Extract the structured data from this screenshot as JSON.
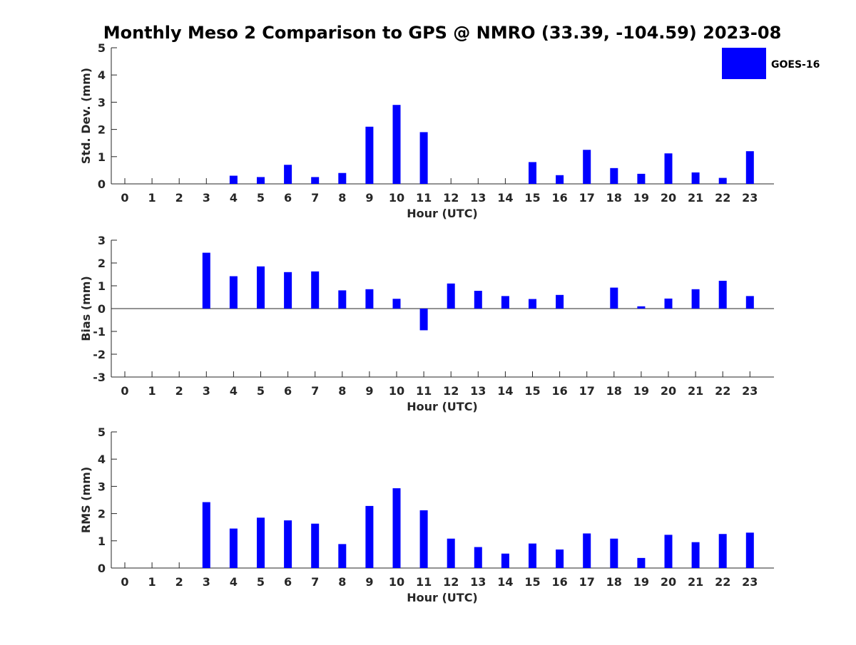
{
  "title": "Monthly Meso 2 Comparison to GPS @ NMRO (33.39, -104.59) 2023-08",
  "legend": {
    "label": "GOES-16",
    "placement": "top-right"
  },
  "colors": {
    "bar": "#0000ff",
    "axis": "#262626"
  },
  "chart_data": [
    {
      "type": "bar",
      "name": "std-dev",
      "xlabel": "Hour (UTC)",
      "ylabel": "Std. Dev. (mm)",
      "ylim": [
        0,
        5
      ],
      "yticks": [
        "0",
        "1",
        "2",
        "3",
        "4",
        "5"
      ],
      "ytick_values": [
        0,
        1,
        2,
        3,
        4,
        5
      ],
      "categories": [
        "0",
        "1",
        "2",
        "3",
        "4",
        "5",
        "6",
        "7",
        "8",
        "9",
        "10",
        "11",
        "12",
        "13",
        "14",
        "15",
        "16",
        "17",
        "18",
        "19",
        "20",
        "21",
        "22",
        "23"
      ],
      "series": [
        {
          "name": "GOES-16",
          "values": [
            null,
            null,
            null,
            null,
            0.3,
            0.25,
            0.7,
            0.25,
            0.4,
            2.1,
            2.9,
            1.9,
            null,
            null,
            null,
            0.8,
            0.32,
            1.25,
            0.58,
            0.37,
            1.12,
            0.42,
            0.22,
            1.2
          ]
        }
      ]
    },
    {
      "type": "bar",
      "name": "bias",
      "xlabel": "Hour (UTC)",
      "ylabel": "Bias (mm)",
      "ylim": [
        -3,
        3
      ],
      "yticks": [
        "-3",
        "-2",
        "-1",
        "0",
        "1",
        "2",
        "3"
      ],
      "ytick_values": [
        -3,
        -2,
        -1,
        0,
        1,
        2,
        3
      ],
      "zero_line": true,
      "categories": [
        "0",
        "1",
        "2",
        "3",
        "4",
        "5",
        "6",
        "7",
        "8",
        "9",
        "10",
        "11",
        "12",
        "13",
        "14",
        "15",
        "16",
        "17",
        "18",
        "19",
        "20",
        "21",
        "22",
        "23"
      ],
      "series": [
        {
          "name": "GOES-16",
          "values": [
            null,
            null,
            null,
            2.45,
            1.42,
            1.85,
            1.6,
            1.63,
            0.8,
            0.85,
            0.43,
            -0.95,
            1.1,
            0.78,
            0.55,
            0.42,
            0.6,
            0.0,
            0.92,
            0.1,
            0.44,
            0.85,
            1.22,
            0.55
          ]
        }
      ]
    },
    {
      "type": "bar",
      "name": "rms",
      "xlabel": "Hour (UTC)",
      "ylabel": "RMS (mm)",
      "ylim": [
        0,
        5
      ],
      "yticks": [
        "0",
        "1",
        "2",
        "3",
        "4",
        "5"
      ],
      "ytick_values": [
        0,
        1,
        2,
        3,
        4,
        5
      ],
      "categories": [
        "0",
        "1",
        "2",
        "3",
        "4",
        "5",
        "6",
        "7",
        "8",
        "9",
        "10",
        "11",
        "12",
        "13",
        "14",
        "15",
        "16",
        "17",
        "18",
        "19",
        "20",
        "21",
        "22",
        "23"
      ],
      "series": [
        {
          "name": "GOES-16",
          "values": [
            null,
            null,
            null,
            2.42,
            1.45,
            1.85,
            1.75,
            1.63,
            0.88,
            2.28,
            2.93,
            2.12,
            1.08,
            0.77,
            0.53,
            0.9,
            0.68,
            1.27,
            1.08,
            0.37,
            1.22,
            0.95,
            1.25,
            1.3
          ]
        }
      ]
    }
  ]
}
